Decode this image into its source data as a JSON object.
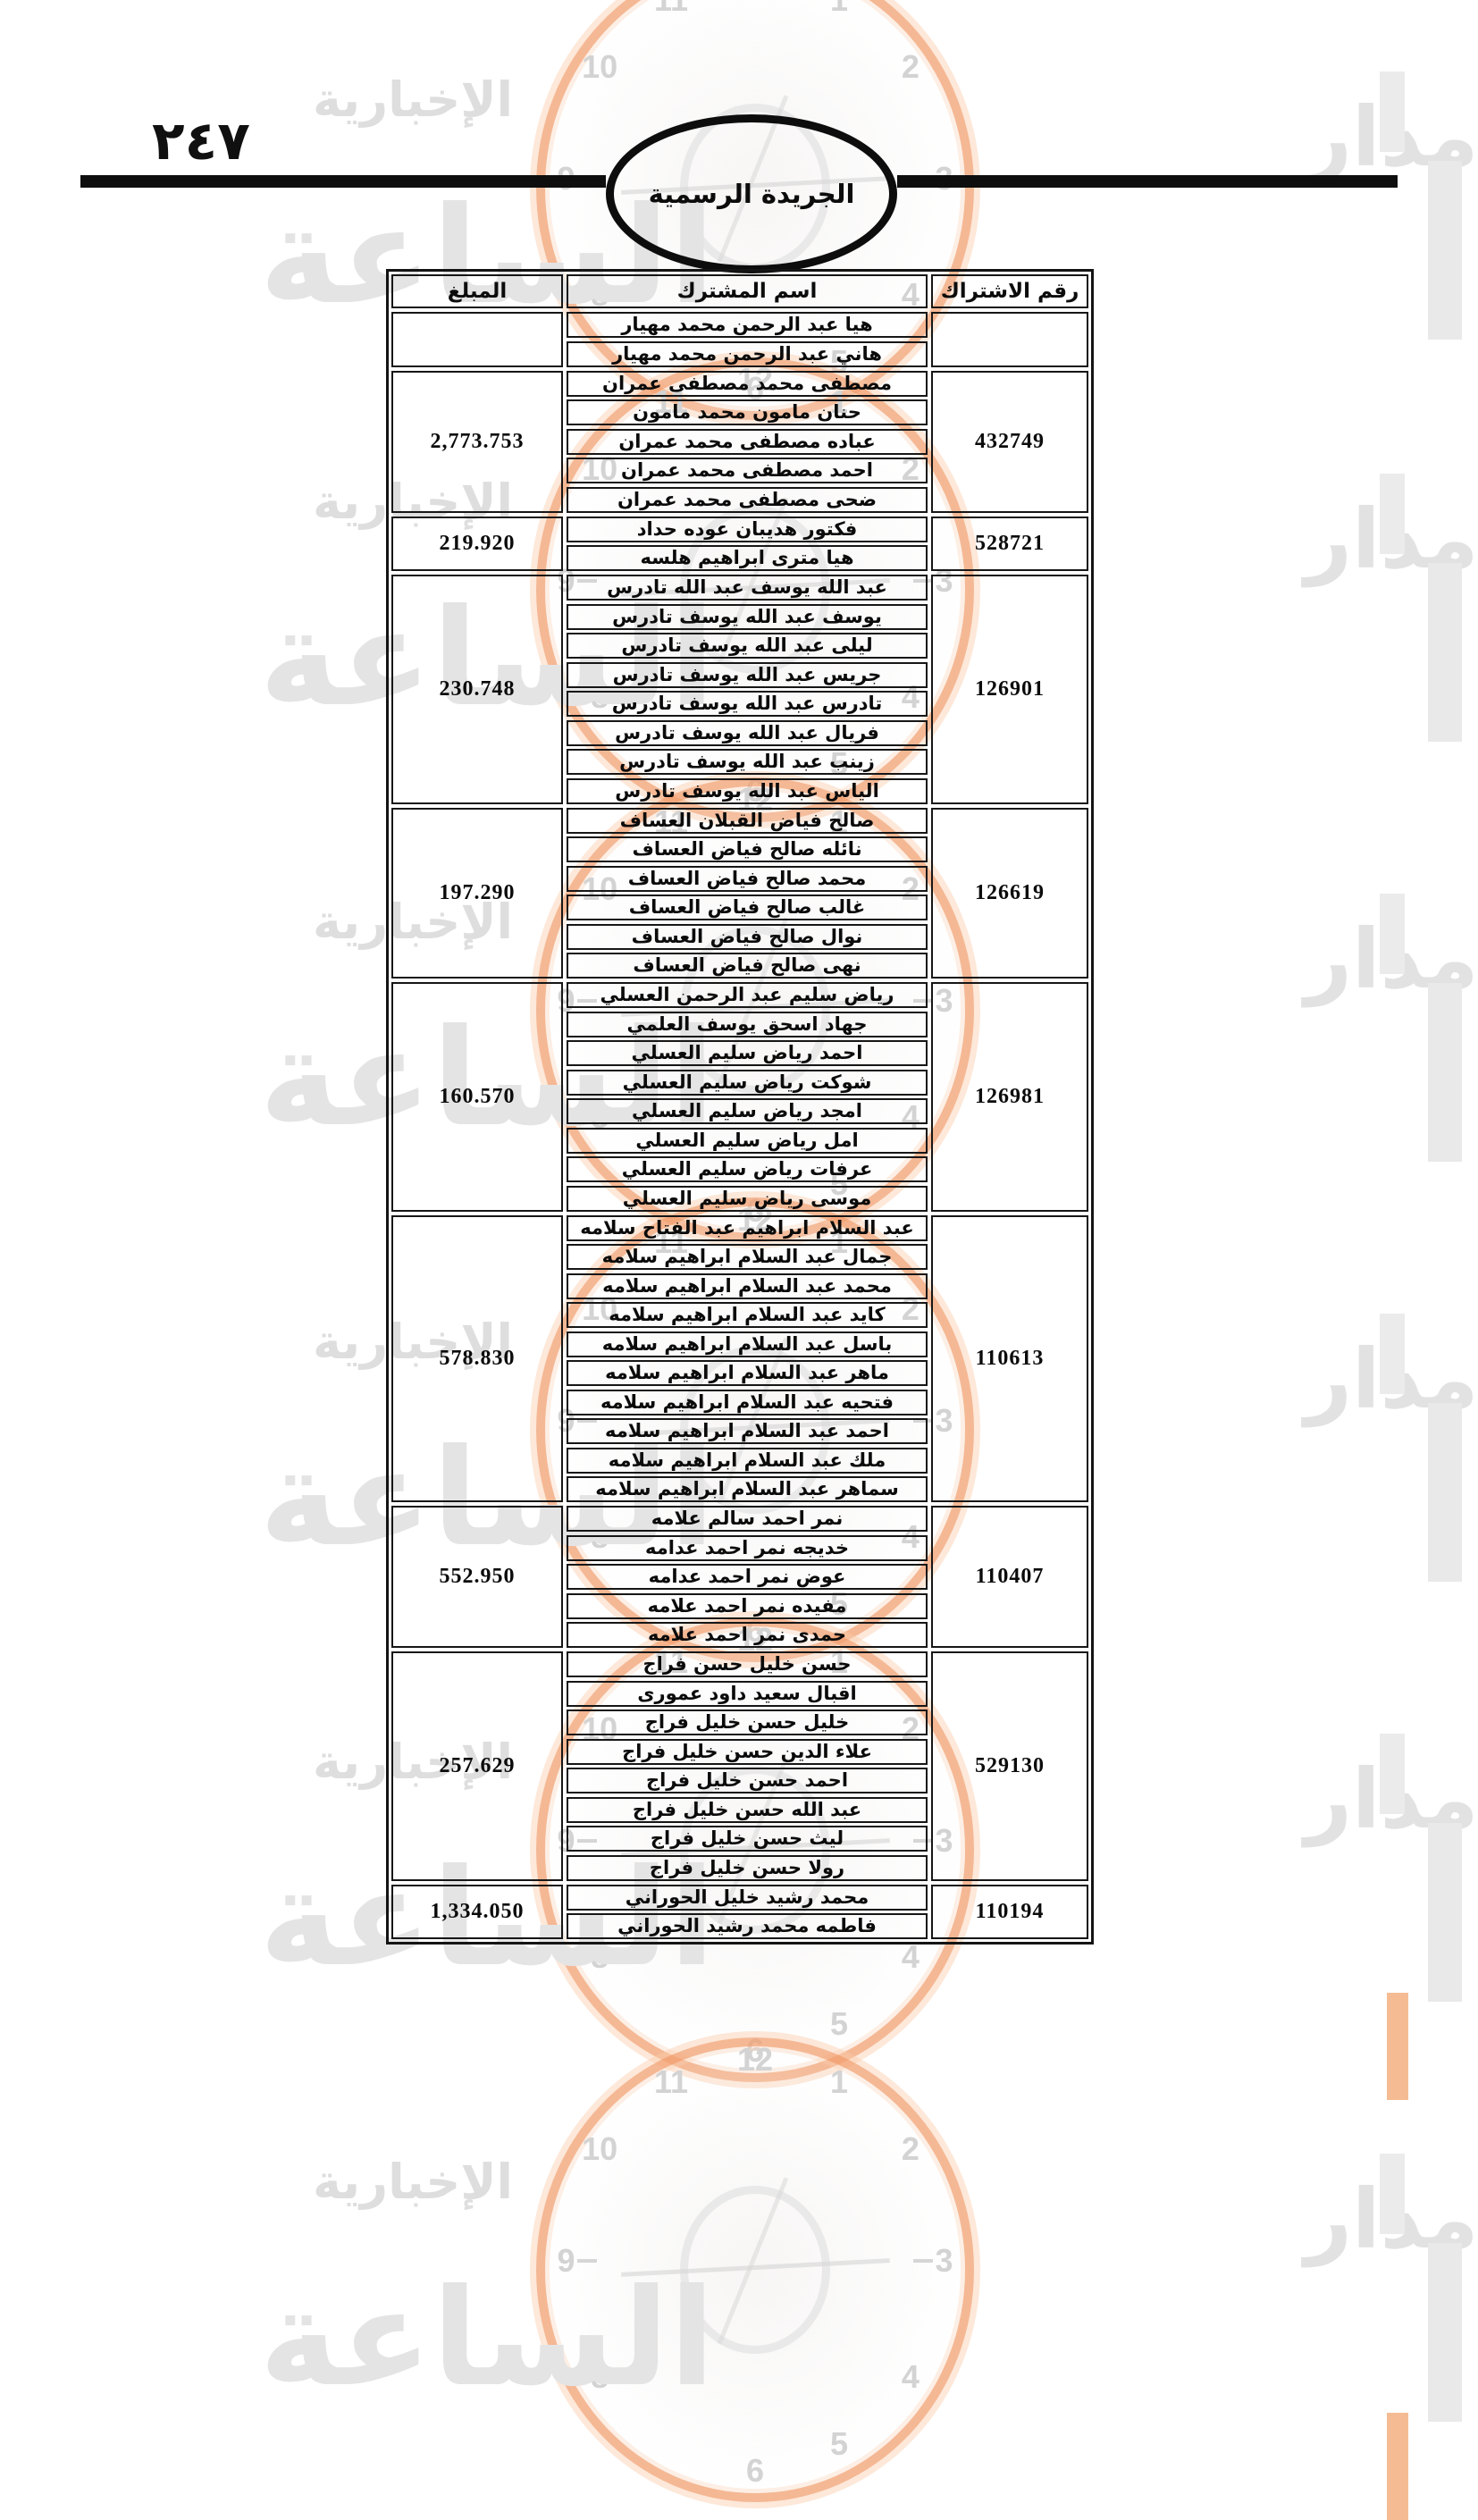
{
  "page": {
    "page_number_arabic": "٢٤٧",
    "stamp_title": "الجريدة الرسمية"
  },
  "table": {
    "headers": {
      "subscription": "رقم الاشتراك",
      "name": "اسم المشترك",
      "amount": "المبلغ"
    },
    "groups": [
      {
        "subscription": "",
        "amount": "",
        "names": [
          "هيا عبد الرحمن محمد مهيار",
          "هاني عبد الرحمن محمد مهيار"
        ]
      },
      {
        "subscription": "432749",
        "amount": "2,773.753",
        "names": [
          "مصطفى محمد مصطفى عمران",
          "حنان مامون محمد مامون",
          "عباده مصطفى محمد عمران",
          "احمد مصطفى محمد عمران",
          "ضحى مصطفى محمد عمران"
        ]
      },
      {
        "subscription": "528721",
        "amount": "219.920",
        "names": [
          "فكتور هديبان عوده حداد",
          "هيا مترى ابراهيم هلسه"
        ]
      },
      {
        "subscription": "126901",
        "amount": "230.748",
        "names": [
          "عبد الله يوسف عبد الله تادرس",
          "يوسف عبد الله يوسف تادرس",
          "ليلى عبد الله يوسف تادرس",
          "جريس عبد الله يوسف تادرس",
          "تادرس عبد الله يوسف تادرس",
          "فريال عبد الله يوسف تادرس",
          "زينب عبد الله يوسف تادرس",
          "الياس عبد الله يوسف تادرس"
        ]
      },
      {
        "subscription": "126619",
        "amount": "197.290",
        "names": [
          "صالح فياض القبلان العساف",
          "نائله صالح فياض العساف",
          "محمد صالح فياض العساف",
          "غالب صالح فياض العساف",
          "نوال صالح فياض العساف",
          "نهى صالح فياض العساف"
        ]
      },
      {
        "subscription": "126981",
        "amount": "160.570",
        "names": [
          "رياض سليم عبد الرحمن العسلي",
          "جهاد اسحق يوسف العلمي",
          "احمد رياض سليم العسلي",
          "شوكت رياض سليم العسلي",
          "امجد رياض سليم العسلي",
          "امل رياض سليم العسلي",
          "عرفات رياض سليم العسلي",
          "موسى رياض سليم العسلي"
        ]
      },
      {
        "subscription": "110613",
        "amount": "578.830",
        "names": [
          "عبد السلام ابراهيم عبد الفتاح سلامه",
          "جمال عبد السلام ابراهيم سلامه",
          "محمد عبد السلام ابراهيم سلامه",
          "كايد عبد السلام ابراهيم سلامه",
          "باسل عبد السلام ابراهيم سلامه",
          "ماهر عبد السلام ابراهيم سلامه",
          "فتحيه عبد السلام ابراهيم سلامه",
          "احمد عبد السلام ابراهيم سلامه",
          "ملك عبد السلام ابراهيم سلامه",
          "سماهر عبد السلام ابراهيم سلامه"
        ]
      },
      {
        "subscription": "110407",
        "amount": "552.950",
        "names": [
          "نمر احمد سالم علامه",
          "خديجه نمر احمد عدامه",
          "عوض نمر احمد عدامه",
          "مفيده نمر احمد علامه",
          "حمدى نمر احمد علامه"
        ]
      },
      {
        "subscription": "529130",
        "amount": "257.629",
        "names": [
          "حسن خليل حسن فراج",
          "اقبال سعيد داود عمورى",
          "خليل حسن خليل فراج",
          "علاء الدين حسن خليل فراج",
          "احمد حسن خليل فراج",
          "عبد الله حسن خليل فراج",
          "ليث حسن خليل فراج",
          "رولا حسن خليل فراج"
        ]
      },
      {
        "subscription": "110194",
        "amount": "1,334.050",
        "names": [
          "محمد رشيد خليل الحوراني",
          "فاطمه محمد رشيد الحوراني"
        ]
      }
    ]
  },
  "watermark": {
    "brand_right": "مدار",
    "brand_big": "الساعة",
    "brand_news": "الإخبارية",
    "clock_numbers": [
      "12",
      "11",
      "1",
      "10",
      "2",
      "9",
      "3",
      "8",
      "4",
      "5",
      "6"
    ],
    "orange": "#f2a070",
    "gray": "#e3e3e3"
  }
}
